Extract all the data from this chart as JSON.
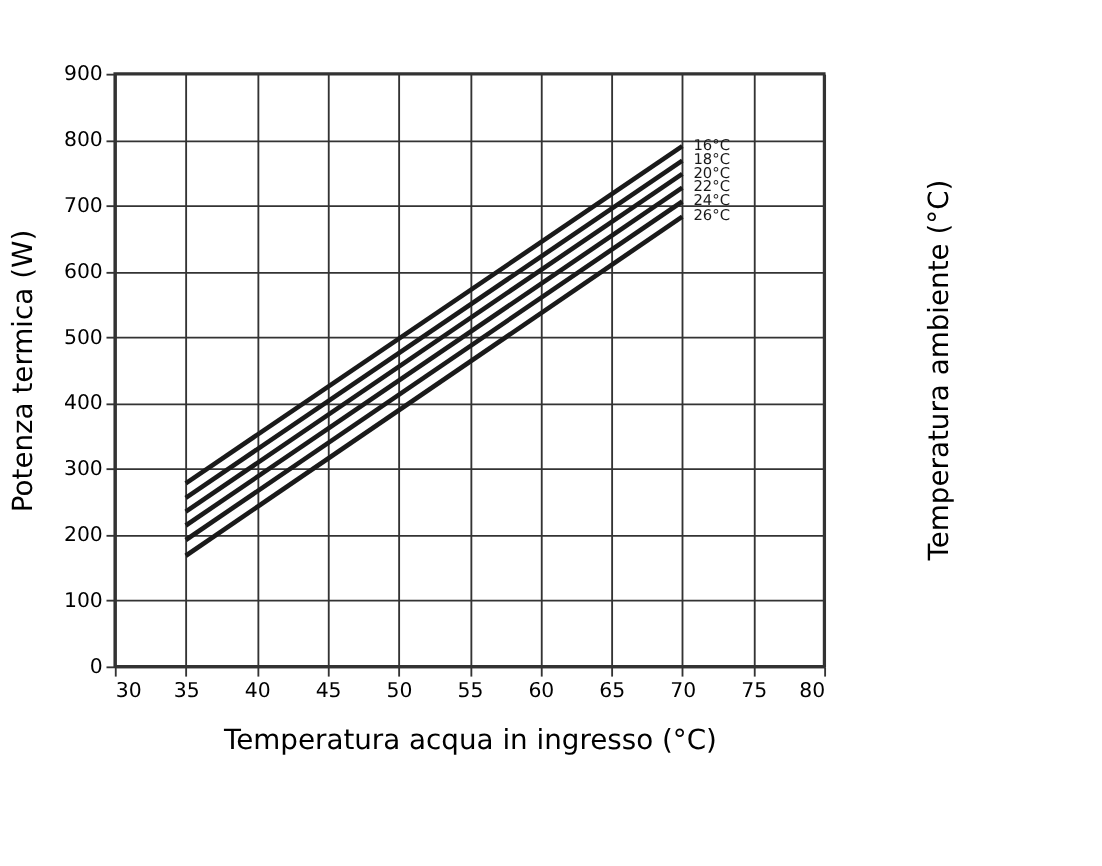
{
  "chart_data": {
    "type": "line",
    "xlabel": "Temperatura acqua in ingresso (°C)",
    "ylabel": "Potenza termica (W)",
    "y2label": "Temperatura ambiente (°C)",
    "x": [
      35,
      70
    ],
    "series": [
      {
        "name": "16°C",
        "color": "#1a1a1a",
        "values": [
          278,
          790
        ]
      },
      {
        "name": "18°C",
        "color": "#1a1a1a",
        "values": [
          256,
          768
        ]
      },
      {
        "name": "20°C",
        "color": "#1a1a1a",
        "values": [
          235,
          748
        ]
      },
      {
        "name": "22°C",
        "color": "#1a1a1a",
        "values": [
          214,
          727
        ]
      },
      {
        "name": "24°C",
        "color": "#1a1a1a",
        "values": [
          192,
          706
        ]
      },
      {
        "name": "26°C",
        "color": "#1a1a1a",
        "values": [
          168,
          683
        ]
      }
    ],
    "xlim": [
      30,
      80
    ],
    "xticks": [
      30,
      35,
      40,
      45,
      50,
      55,
      60,
      65,
      70,
      75,
      80
    ],
    "ylim": [
      0,
      900
    ],
    "yticks": [
      0,
      100,
      200,
      300,
      400,
      500,
      600,
      700,
      800,
      900
    ],
    "grid": true,
    "marker": "none",
    "line_style": "solid"
  }
}
